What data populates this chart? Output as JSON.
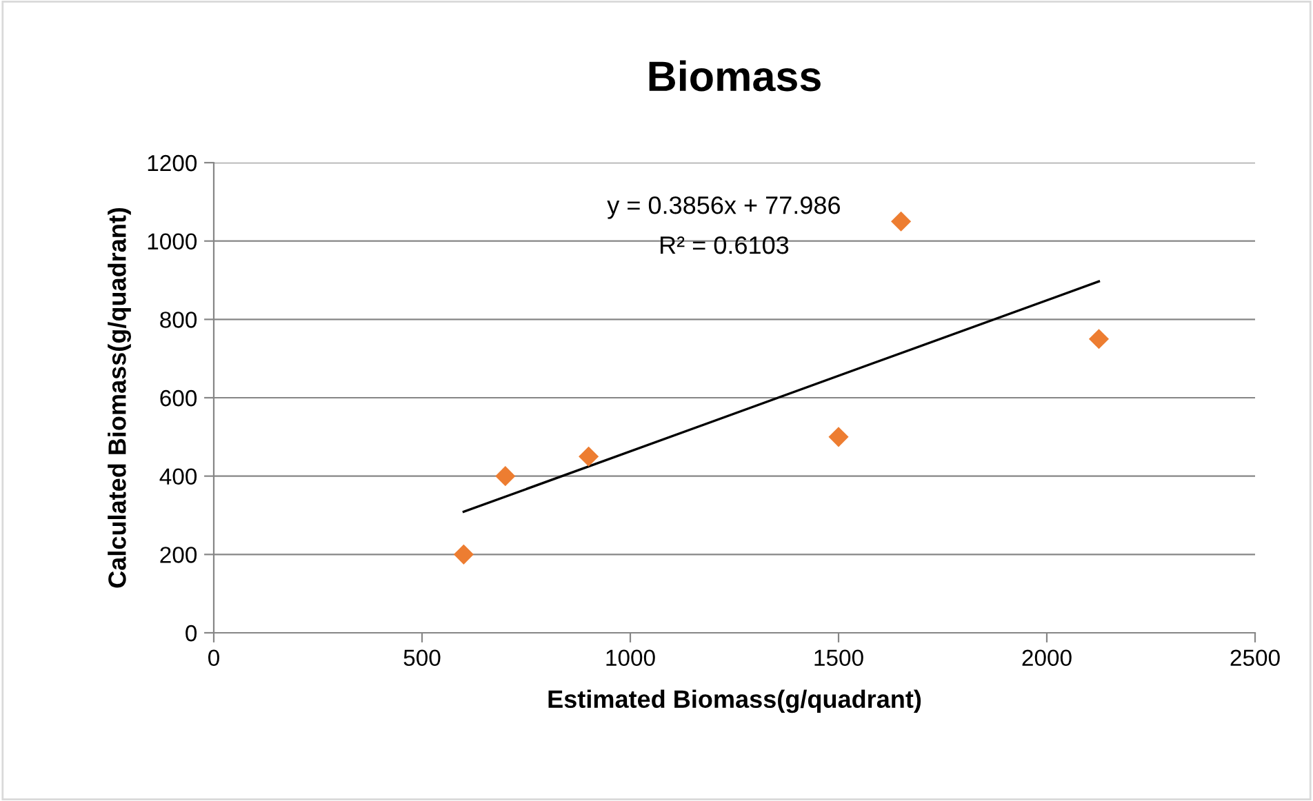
{
  "chart_data": {
    "type": "scatter",
    "title": "Biomass",
    "xlabel": "Estimated Biomass(g/quadrant)",
    "ylabel": "Calculated Biomass(g/quadrant)",
    "series": [
      {
        "color": "#ed7d31",
        "marker": "diamond",
        "x": [
          600,
          700,
          900,
          1500,
          1650,
          2125
        ],
        "values": [
          200,
          400,
          450,
          500,
          1050,
          750
        ]
      },
      {
        "type": "line",
        "color": "#000000",
        "marker": "none",
        "line_style": "solid",
        "x": [
          600,
          2125
        ],
        "values": [
          309,
          897
        ]
      }
    ],
    "annotations": [
      "y = 0.3856x + 77.986",
      "R² = 0.6103"
    ],
    "xlim": [
      0,
      2500
    ],
    "xticks": [
      0,
      500,
      1000,
      1500,
      2000,
      2500
    ],
    "ylim": [
      0,
      1200
    ],
    "yticks": [
      0,
      200,
      400,
      600,
      800,
      1000,
      1200
    ],
    "grid": "y",
    "legend": false
  }
}
